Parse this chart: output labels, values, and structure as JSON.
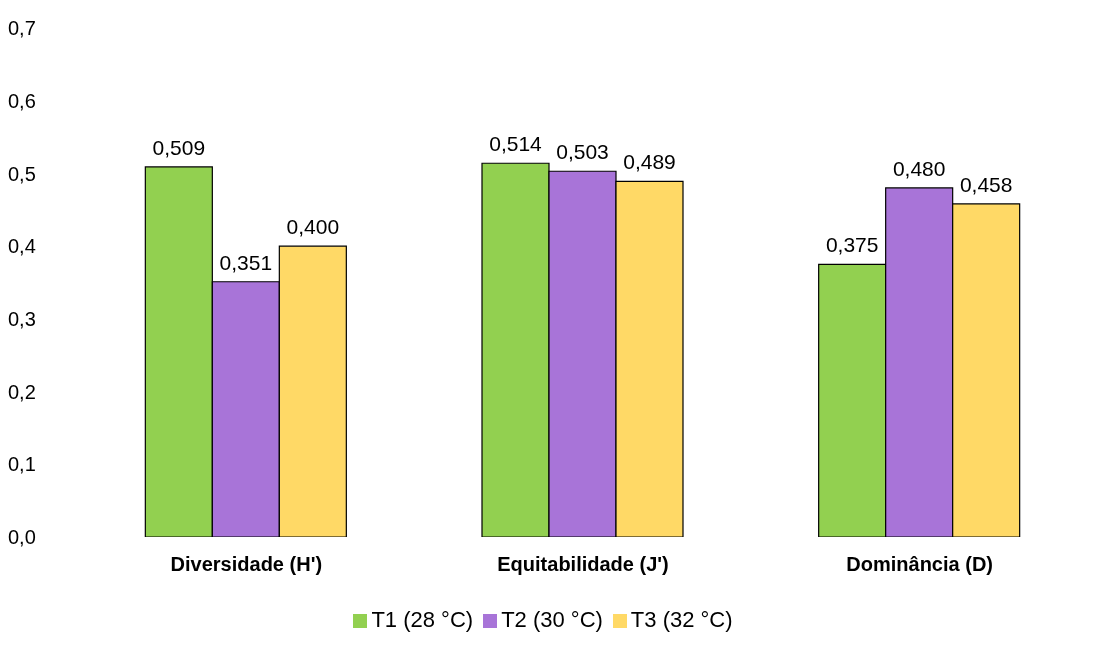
{
  "chart_data": {
    "type": "bar",
    "categories": [
      "Diversidade (H')",
      "Equitabilidade (J')",
      "Dominância (D)"
    ],
    "series": [
      {
        "name": "T1 (28 °C)",
        "color": "#92d050",
        "values": [
          0.509,
          0.514,
          0.375
        ],
        "value_labels": [
          "0,509",
          "0,514",
          "0,375"
        ]
      },
      {
        "name": "T2 (30 °C)",
        "color": "#a874d8",
        "values": [
          0.351,
          0.503,
          0.48
        ],
        "value_labels": [
          "0,351",
          "0,503",
          "0,480"
        ]
      },
      {
        "name": "T3 (32 °C)",
        "color": "#ffd966",
        "values": [
          0.4,
          0.489,
          0.458
        ],
        "value_labels": [
          "0,400",
          "0,489",
          "0,458"
        ]
      }
    ],
    "ylim": [
      0,
      0.7
    ],
    "yticks": [
      {
        "value": 0,
        "label": "0,0"
      },
      {
        "value": 0.1,
        "label": "0,1"
      },
      {
        "value": 0.2,
        "label": "0,2"
      },
      {
        "value": 0.3,
        "label": "0,3"
      },
      {
        "value": 0.4,
        "label": "0,4"
      },
      {
        "value": 0.5,
        "label": "0,5"
      },
      {
        "value": 0.6,
        "label": "0,6"
      },
      {
        "value": 0.7,
        "label": "0,7"
      }
    ],
    "legend": "bottom"
  }
}
